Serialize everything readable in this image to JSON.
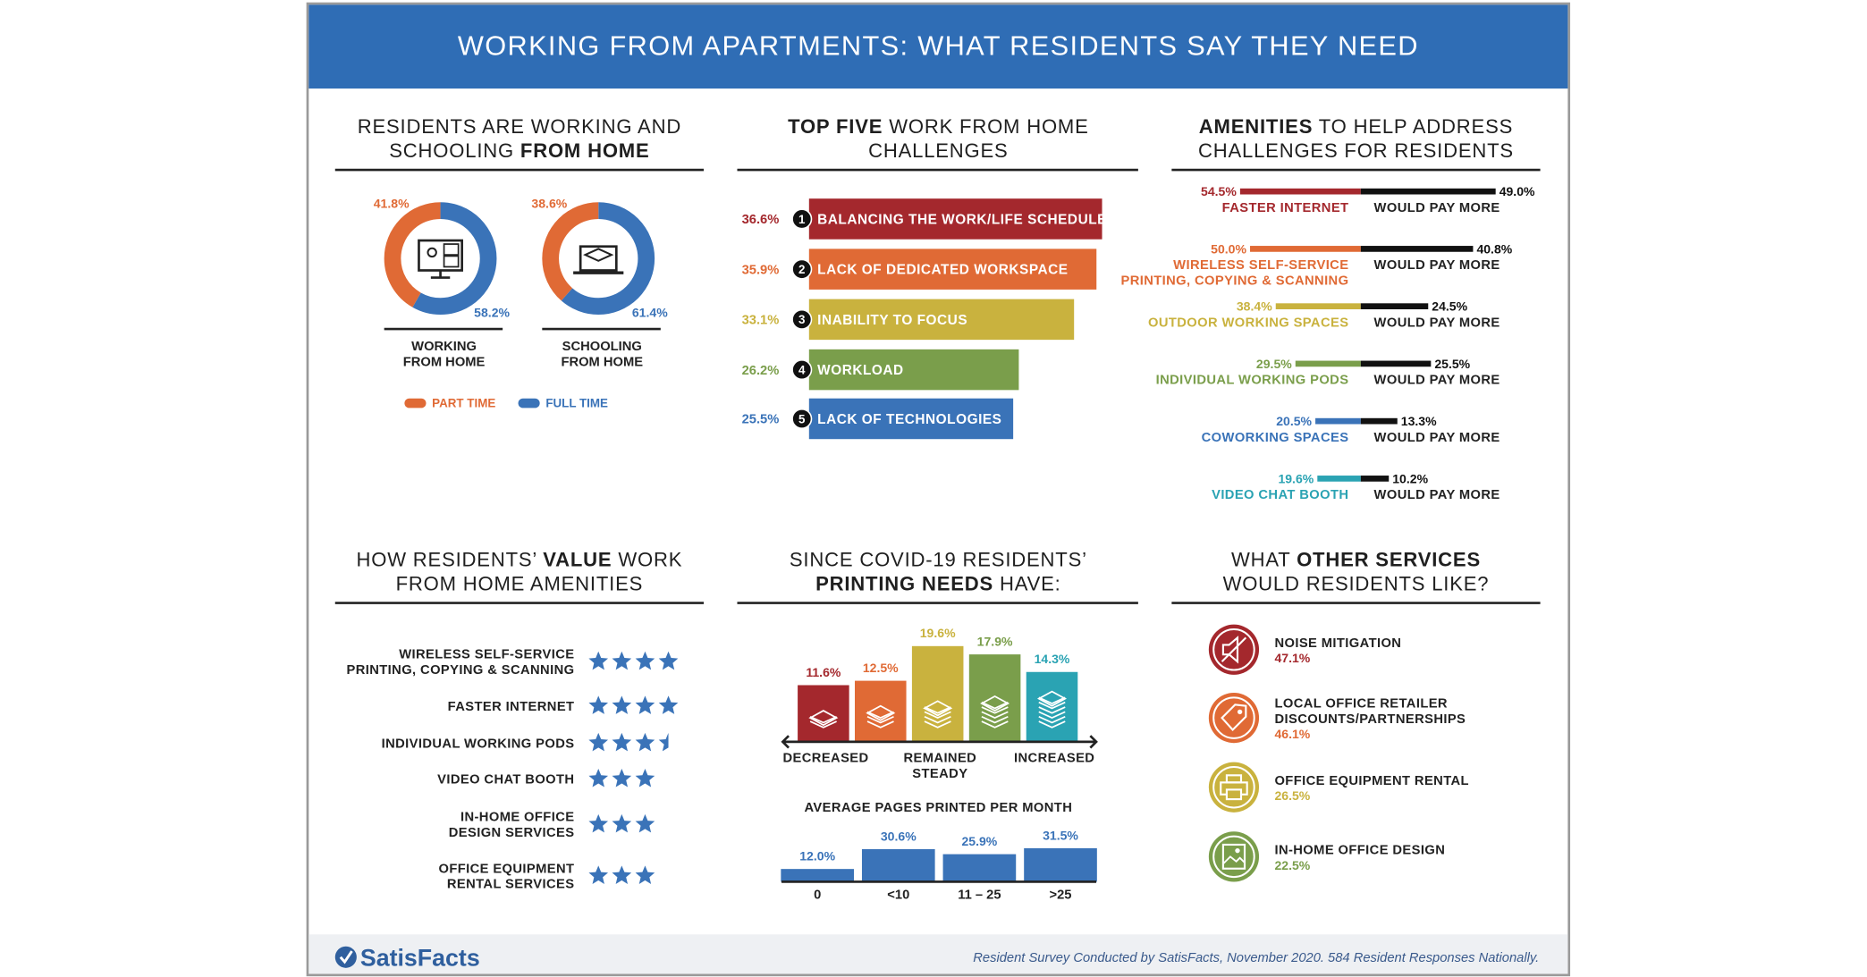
{
  "title": "WORKING FROM APARTMENTS: WHAT RESIDENTS SAY THEY NEED",
  "brand": "SatisFacts",
  "footnote": "Resident Survey Conducted by SatisFacts, November 2020. 584 Resident Responses Nationally.",
  "chart_data": [
    {
      "type": "donut",
      "title": [
        [
          {
            "text": "RESIDENTS ARE WORKING AND"
          }
        ],
        [
          {
            "text": "SCHOOLING "
          },
          {
            "text": "FROM HOME",
            "bold": true
          }
        ]
      ],
      "categories": [
        [
          "WORKING",
          "FROM HOME"
        ],
        [
          "SCHOOLING",
          "FROM HOME"
        ]
      ],
      "series": [
        {
          "name": "PART TIME",
          "color": "#e06a35",
          "values": [
            41.8,
            38.6
          ],
          "value_labels": [
            "41.8%",
            "38.6%"
          ]
        },
        {
          "name": "FULL TIME",
          "color": "#3a73b8",
          "values": [
            58.2,
            61.4
          ],
          "value_labels": [
            "58.2%",
            "61.4%"
          ]
        }
      ],
      "legend": "bottom"
    },
    {
      "type": "hbar",
      "title": [
        [
          {
            "text": "TOP FIVE",
            "bold": true
          },
          {
            "text": " WORK FROM HOME"
          }
        ],
        [
          {
            "text": "CHALLENGES"
          }
        ]
      ],
      "categories": [
        "BALANCING THE WORK/LIFE SCHEDULE",
        "LACK OF DEDICATED WORKSPACE",
        "INABILITY TO FOCUS",
        "WORKLOAD",
        "LACK OF TECHNOLOGIES"
      ],
      "ranks": [
        1,
        2,
        3,
        4,
        5
      ],
      "values": [
        36.6,
        35.9,
        33.1,
        26.2,
        25.5
      ],
      "value_labels": [
        "36.6%",
        "35.9%",
        "33.1%",
        "26.2%",
        "25.5%"
      ],
      "colors": [
        "#a4282d",
        "#e06a35",
        "#c9b23e",
        "#7a9e4b",
        "#3a73b8"
      ]
    },
    {
      "type": "diverging",
      "title": [
        [
          {
            "text": "AMENITIES",
            "bold": true
          },
          {
            "text": " TO HELP ADDRESS"
          }
        ],
        [
          {
            "text": "CHALLENGES FOR RESIDENTS"
          }
        ]
      ],
      "categories": [
        [
          "FASTER INTERNET"
        ],
        [
          "WIRELESS SELF-SERVICE",
          "PRINTING, COPYING & SCANNING"
        ],
        [
          "OUTDOOR WORKING SPACES"
        ],
        [
          "INDIVIDUAL WORKING PODS"
        ],
        [
          "COWORKING SPACES"
        ],
        [
          "VIDEO CHAT BOOTH"
        ]
      ],
      "series": [
        {
          "colors": [
            "#a4282d",
            "#e06a35",
            "#c9b23e",
            "#7a9e4b",
            "#3a73b8",
            "#2aa3b3"
          ],
          "values": [
            54.5,
            50.0,
            38.4,
            29.5,
            20.5,
            19.6
          ],
          "value_labels": [
            "54.5%",
            "50.0%",
            "38.4%",
            "29.5%",
            "20.5%",
            "19.6%"
          ]
        },
        {
          "name": "WOULD PAY MORE",
          "color": "#111111",
          "values": [
            49.0,
            40.8,
            24.5,
            25.5,
            13.3,
            10.2
          ],
          "value_labels": [
            "49.0%",
            "40.8%",
            "24.5%",
            "25.5%",
            "13.3%",
            "10.2%"
          ]
        }
      ]
    },
    {
      "type": "rating",
      "title": [
        [
          {
            "text": "HOW RESIDENTS’ "
          },
          {
            "text": "VALUE",
            "bold": true
          },
          {
            "text": " WORK"
          }
        ],
        [
          {
            "text": "FROM HOME AMENITIES"
          }
        ]
      ],
      "categories": [
        [
          "WIRELESS SELF-SERVICE",
          "PRINTING, COPYING & SCANNING"
        ],
        [
          "FASTER INTERNET"
        ],
        [
          "INDIVIDUAL WORKING PODS"
        ],
        [
          "VIDEO CHAT BOOTH"
        ],
        [
          "IN-HOME OFFICE",
          "DESIGN SERVICES"
        ],
        [
          "OFFICE EQUIPMENT",
          "RENTAL SERVICES"
        ]
      ],
      "values": [
        4,
        4,
        3.5,
        3,
        3,
        3
      ],
      "color": "#3a73b8"
    },
    {
      "type": "bar",
      "title": [
        [
          {
            "text": "SINCE COVID-19 RESIDENTS’"
          }
        ],
        [
          {
            "text": "PRINTING NEEDS",
            "bold": true
          },
          {
            "text": " HAVE:"
          }
        ]
      ],
      "categories": [
        [
          "DECREASED"
        ],
        null,
        [
          "REMAINED",
          "STEADY"
        ],
        null,
        [
          "INCREASED"
        ]
      ],
      "values": [
        11.6,
        12.5,
        19.6,
        17.9,
        14.3
      ],
      "value_labels": [
        "11.6%",
        "12.5%",
        "19.6%",
        "17.9%",
        "14.3%"
      ],
      "colors": [
        "#a4282d",
        "#e06a35",
        "#c9b23e",
        "#7a9e4b",
        "#2aa3b3"
      ]
    },
    {
      "type": "bar",
      "subtitle": "AVERAGE PAGES PRINTED PER MONTH",
      "categories": [
        "0",
        "<10",
        "11 – 25",
        ">25"
      ],
      "values": [
        12.0,
        30.6,
        25.9,
        31.5
      ],
      "value_labels": [
        "12.0%",
        "30.6%",
        "25.9%",
        "31.5%"
      ],
      "color": "#3a73b8"
    },
    {
      "type": "list",
      "title": [
        [
          {
            "text": "WHAT "
          },
          {
            "text": "OTHER SERVICES",
            "bold": true
          }
        ],
        [
          {
            "text": "WOULD RESIDENTS LIKE?"
          }
        ]
      ],
      "categories": [
        [
          "NOISE MITIGATION"
        ],
        [
          "LOCAL OFFICE RETAILER",
          "DISCOUNTS/PARTNERSHIPS"
        ],
        [
          "OFFICE EQUIPMENT RENTAL"
        ],
        [
          "IN-HOME OFFICE DESIGN"
        ]
      ],
      "values": [
        47.1,
        46.1,
        26.5,
        22.5
      ],
      "value_labels": [
        "47.1%",
        "46.1%",
        "26.5%",
        "22.5%"
      ],
      "colors": [
        "#a4282d",
        "#e06a35",
        "#c9b23e",
        "#7a9e4b"
      ]
    }
  ]
}
